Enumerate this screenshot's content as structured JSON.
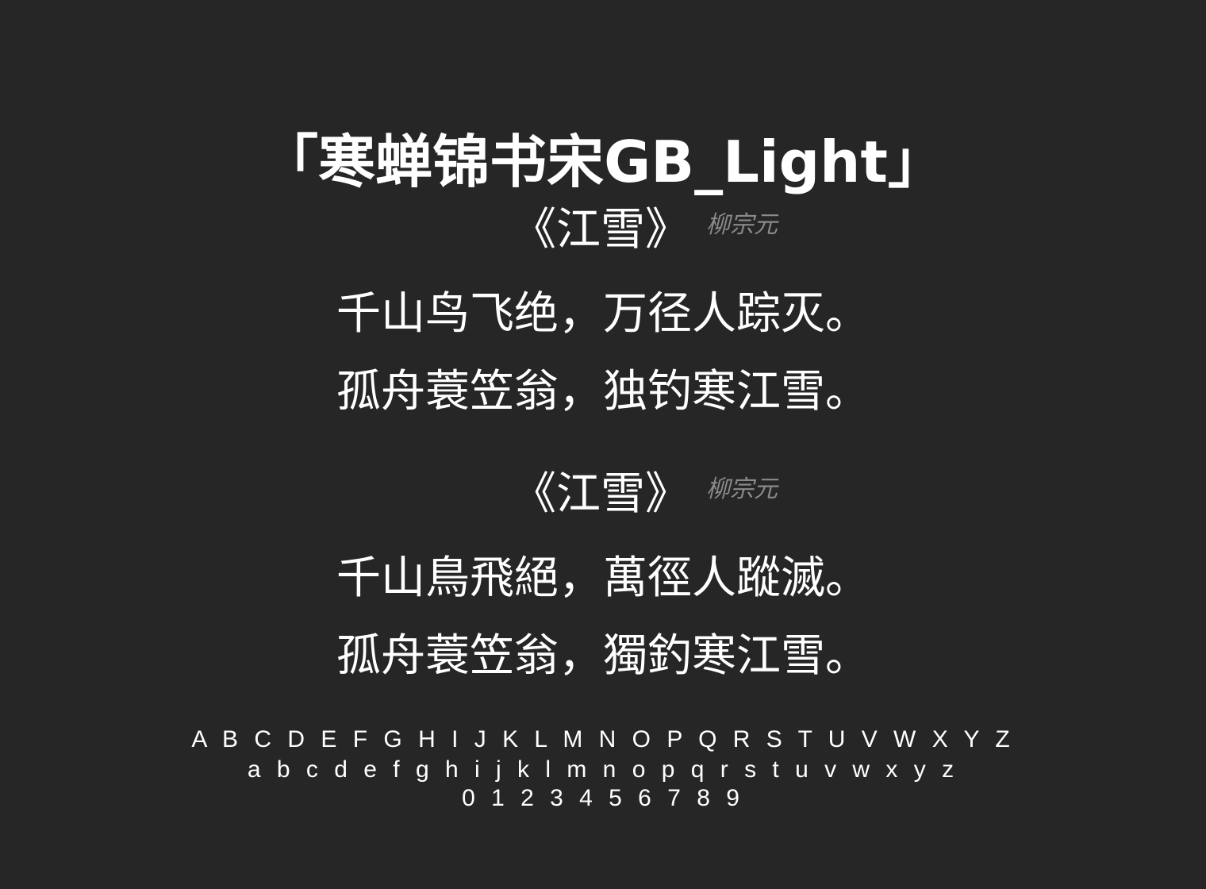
{
  "title": "「寒蝉锦书宋GB_Light」",
  "poems": [
    {
      "title": "《江雪》",
      "author": "柳宗元",
      "lines": [
        "千山鸟飞绝，万径人踪灭。",
        "孤舟蓑笠翁，独钓寒江雪。"
      ]
    },
    {
      "title": "《江雪》",
      "author": "柳宗元",
      "lines": [
        "千山鳥飛絕，萬徑人蹤滅。",
        "孤舟蓑笠翁，獨釣寒江雪。"
      ]
    }
  ],
  "alphabet": {
    "uppercase": "A B C D E F G H I J K L M N O P Q R S T U V W X Y Z",
    "lowercase": "a b c d e f g h i j k l m n o p q r s t u v w x y z",
    "digits": "0 1 2 3 4 5 6 7 8 9"
  },
  "colors": {
    "background": "#262626",
    "text": "#ffffff",
    "author": "#8a8a8a"
  }
}
